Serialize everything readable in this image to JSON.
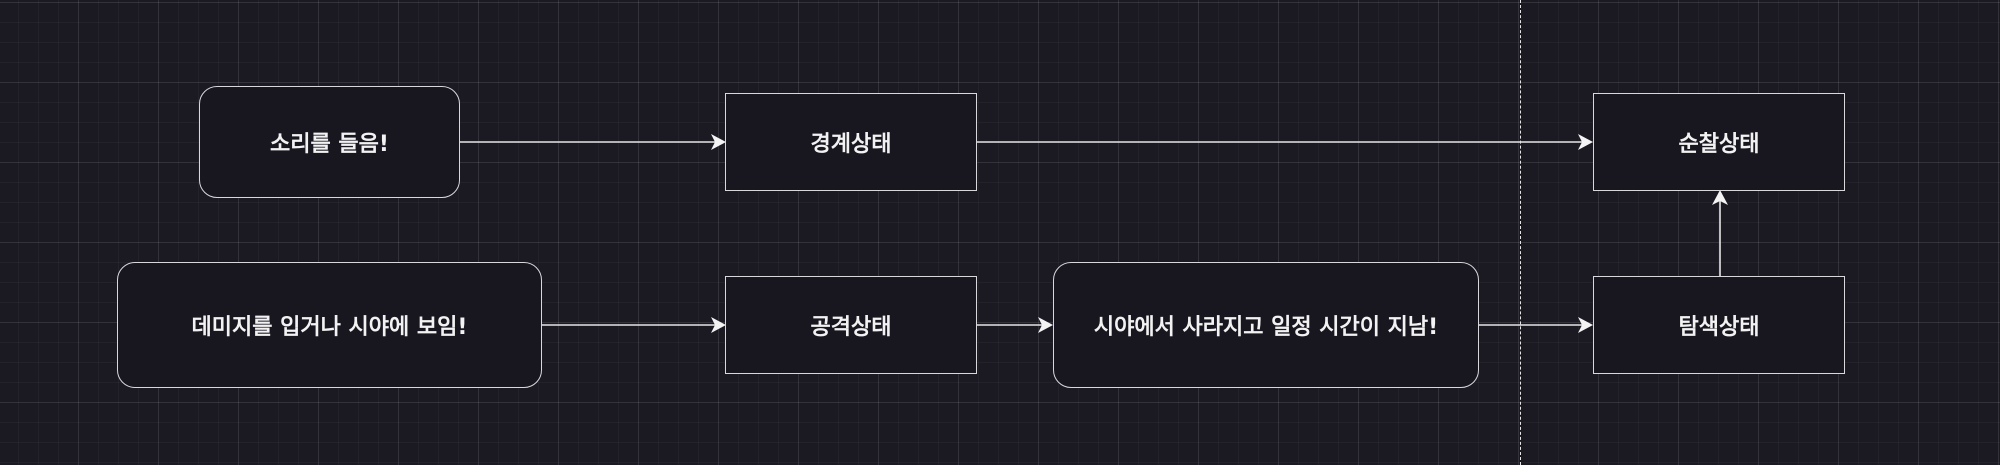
{
  "diagram": {
    "type": "state-flowchart",
    "nodes": {
      "sound": {
        "label": "소리를 들음!",
        "kind": "condition"
      },
      "alert": {
        "label": "경계상태",
        "kind": "state"
      },
      "patrol": {
        "label": "순찰상태",
        "kind": "state"
      },
      "damage": {
        "label": "데미지를 입거나 시야에 보임!",
        "kind": "condition"
      },
      "attack": {
        "label": "공격상태",
        "kind": "state"
      },
      "lost": {
        "label": "시야에서 사라지고 일정 시간이 지남!",
        "kind": "condition"
      },
      "search": {
        "label": "탐색상태",
        "kind": "state"
      }
    },
    "edges": [
      {
        "from": "sound",
        "to": "alert"
      },
      {
        "from": "alert",
        "to": "patrol"
      },
      {
        "from": "damage",
        "to": "attack"
      },
      {
        "from": "attack",
        "to": "lost"
      },
      {
        "from": "lost",
        "to": "search"
      },
      {
        "from": "search",
        "to": "patrol"
      }
    ]
  }
}
